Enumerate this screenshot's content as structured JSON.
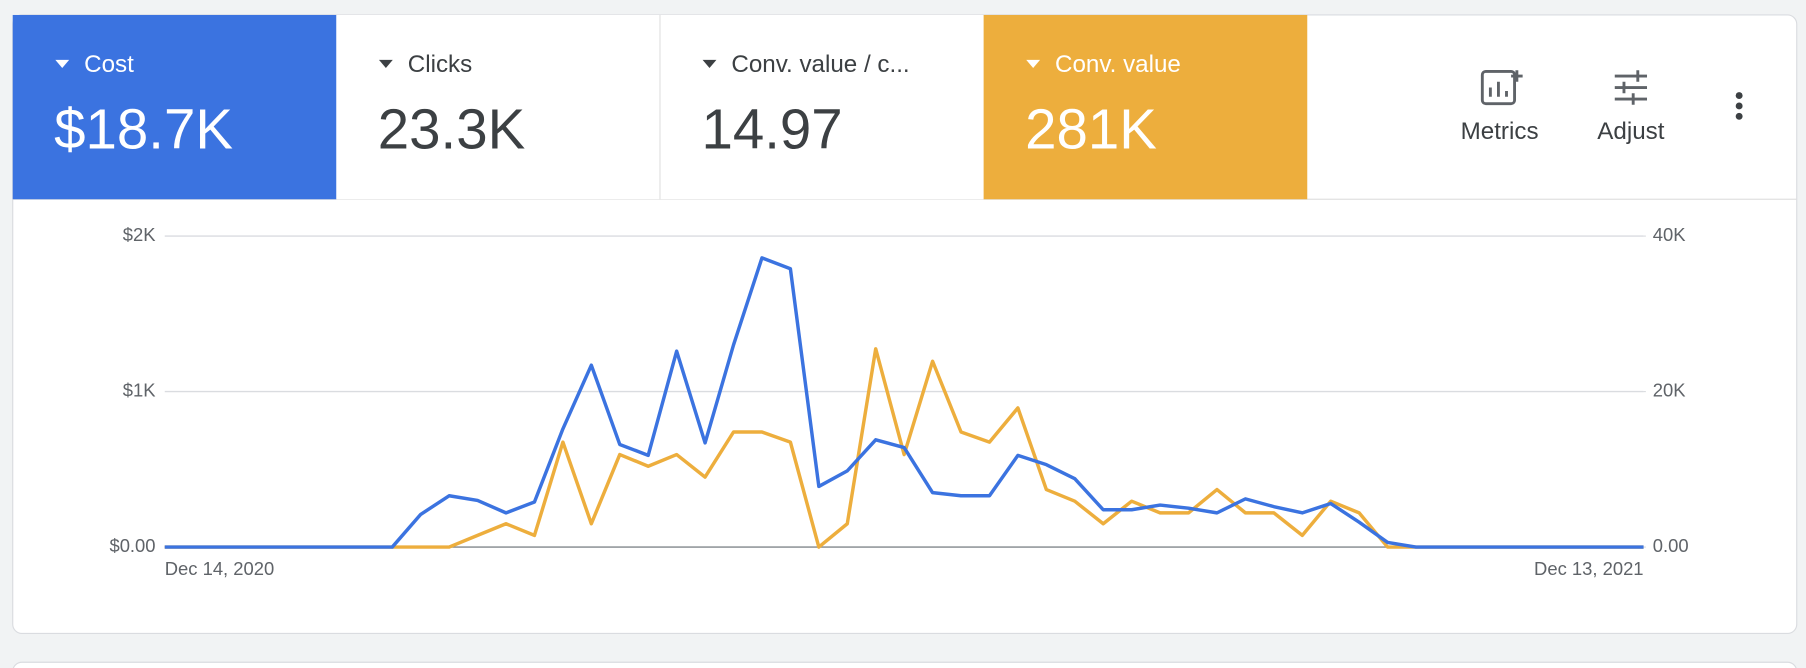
{
  "tiles": [
    {
      "label": "Cost",
      "value": "$18.7K",
      "color": "#3b73e0"
    },
    {
      "label": "Clicks",
      "value": "23.3K"
    },
    {
      "label": "Conv. value / c...",
      "value": "14.97"
    },
    {
      "label": "Conv. value",
      "value": "281K",
      "color": "#edae3d"
    }
  ],
  "buttons": [
    "Metrics",
    "Adjust"
  ],
  "chart_data": {
    "type": "line",
    "categories": [
      "Dec 14, 2020",
      null,
      null,
      null,
      null,
      null,
      null,
      null,
      null,
      null,
      null,
      null,
      null,
      null,
      null,
      null,
      null,
      null,
      null,
      null,
      null,
      null,
      null,
      null,
      null,
      null,
      null,
      null,
      null,
      null,
      null,
      null,
      null,
      null,
      null,
      null,
      null,
      null,
      null,
      null,
      null,
      null,
      null,
      null,
      null,
      null,
      null,
      null,
      null,
      null,
      null,
      null,
      "Dec 13, 2021"
    ],
    "series": [
      {
        "color": "#3b73e0",
        "axis": "y",
        "values": [
          0,
          0,
          0,
          0,
          0,
          0,
          0,
          0,
          0,
          210,
          330,
          300,
          220,
          290,
          760,
          1170,
          660,
          590,
          1260,
          670,
          1300,
          1860,
          1790,
          390,
          490,
          690,
          640,
          350,
          330,
          330,
          590,
          530,
          440,
          240,
          240,
          270,
          250,
          220,
          310,
          260,
          220,
          280,
          160,
          30,
          0,
          0,
          0,
          0,
          0,
          0,
          0,
          0,
          0
        ]
      },
      {
        "color": "#edae3d",
        "axis": "y2",
        "values": [
          0,
          0,
          0,
          0,
          0,
          0,
          0,
          0,
          0,
          0,
          0,
          1500,
          3000,
          1500,
          13500,
          3000,
          11900,
          10400,
          11900,
          9000,
          14800,
          14800,
          13500,
          0,
          3000,
          25500,
          11900,
          23900,
          14800,
          13500,
          17900,
          7400,
          5900,
          3000,
          5900,
          4400,
          4400,
          7400,
          4400,
          4400,
          1500,
          5900,
          4400,
          0,
          0,
          0,
          0,
          0,
          0,
          0,
          0,
          0,
          0
        ]
      }
    ],
    "ylim": [
      0,
      2000
    ],
    "yticks": [
      {
        "value": 0,
        "label": "$0.00"
      },
      {
        "value": 1000,
        "label": "$1K"
      },
      {
        "value": 2000,
        "label": "$2K"
      }
    ],
    "y2lim": [
      0,
      40000
    ],
    "y2ticks": [
      {
        "value": 0,
        "label": "0.00"
      },
      {
        "value": 20000,
        "label": "20K"
      },
      {
        "value": 40000,
        "label": "40K"
      }
    ],
    "grid": true
  }
}
